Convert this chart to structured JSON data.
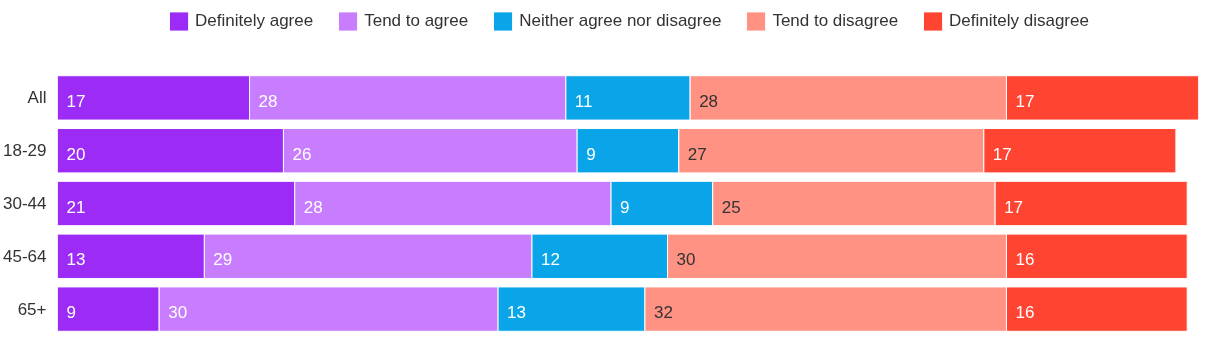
{
  "chart_data": {
    "type": "bar",
    "orientation": "horizontal",
    "stacked": true,
    "data_labels": true,
    "legend": "top",
    "grid": false,
    "categories": [
      "All",
      "18-29",
      "30-44",
      "45-64",
      "65+"
    ],
    "series": [
      {
        "name": "Definitely agree",
        "color": "#9b2bf5",
        "values": [
          17,
          20,
          21,
          13,
          9
        ]
      },
      {
        "name": "Tend to agree",
        "color": "#c77dfd",
        "values": [
          28,
          26,
          28,
          29,
          30
        ]
      },
      {
        "name": "Neither agree nor disagree",
        "color": "#0aa5e9",
        "values": [
          11,
          9,
          9,
          12,
          13
        ]
      },
      {
        "name": "Tend to disagree",
        "color": "#ff9282",
        "values": [
          28,
          27,
          25,
          30,
          32
        ]
      },
      {
        "name": "Definitely disagree",
        "color": "#ff4431",
        "values": [
          17,
          17,
          17,
          16,
          16
        ]
      }
    ]
  }
}
